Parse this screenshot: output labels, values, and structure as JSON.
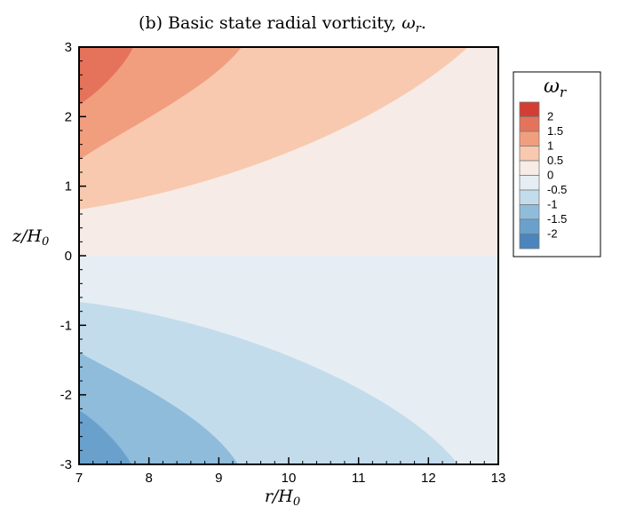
{
  "chart_data": {
    "type": "contour",
    "title_main": "(b) Basic state radial vorticity, ",
    "title_symbol": "ω",
    "title_sub": "r",
    "title_end": ".",
    "xlabel_main": "r/H",
    "xlabel_sub": "0",
    "ylabel_main": "z/H",
    "ylabel_sub": "0",
    "xlim": [
      7,
      13
    ],
    "ylim": [
      -3,
      3
    ],
    "x_ticks": [
      7,
      8,
      9,
      10,
      11,
      12,
      13
    ],
    "y_ticks": [
      3,
      2,
      1,
      0,
      -1,
      -2,
      -3
    ],
    "y_tick_labels": [
      "3",
      "2",
      "1",
      "0",
      "-1",
      "-2",
      "-3"
    ],
    "legend": {
      "title_symbol": "ω",
      "title_sub": "r",
      "labels": [
        "2",
        "1.5",
        "1",
        "0.5",
        "0",
        "-0.5",
        "-1",
        "-1.5",
        "-2"
      ],
      "colors": [
        "#d43d33",
        "#e5735b",
        "#f19e7e",
        "#f8c9ae",
        "#f6ebe6",
        "#e6eef3",
        "#c3dcec",
        "#8fbcda",
        "#6aa1cc",
        "#4b85bd"
      ]
    },
    "regions": [
      {
        "name": "omega-gt-2",
        "color": "#e5735b",
        "levels": [
          2,
          2.5
        ]
      },
      {
        "name": "omega-1.5-2",
        "color": "#f19e7e",
        "levels": [
          1.5,
          2
        ]
      },
      {
        "name": "omega-1-1.5",
        "color": "#f19e7e",
        "levels": [
          1,
          1.5
        ]
      },
      {
        "name": "omega-0.5-1",
        "color": "#f8c9ae",
        "levels": [
          0.5,
          1
        ]
      },
      {
        "name": "omega-0-0.5",
        "color": "#f6ebe6",
        "levels": [
          0,
          0.5
        ]
      },
      {
        "name": "omega-neg0.5-0",
        "color": "#e6eef3",
        "levels": [
          -0.5,
          0
        ]
      },
      {
        "name": "omega-neg1-neg0.5",
        "color": "#c3dcec",
        "levels": [
          -1,
          -0.5
        ]
      },
      {
        "name": "omega-neg1.5-neg1",
        "color": "#8fbcda",
        "levels": [
          -1.5,
          -1
        ]
      },
      {
        "name": "omega-lt-neg1.5",
        "color": "#6aa1cc",
        "levels": [
          -2,
          -1.5
        ]
      }
    ]
  }
}
